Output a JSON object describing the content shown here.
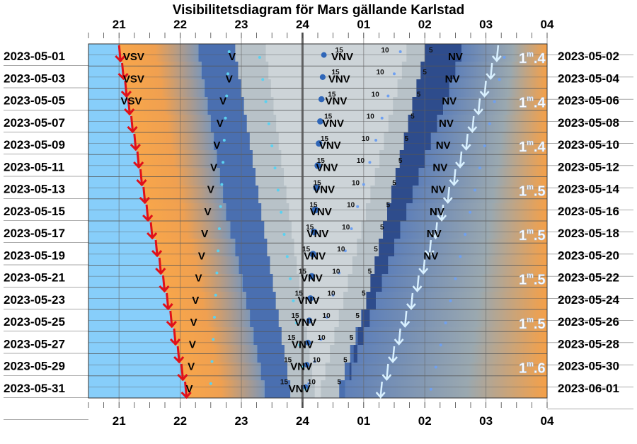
{
  "chart_data": {
    "type": "other",
    "title": "Visibilitetsdiagram för Mars gällande Karlstad",
    "x_tick_labels": [
      "21",
      "22",
      "23",
      "24",
      "01",
      "02",
      "03",
      "04"
    ],
    "x_hours": [
      21,
      22,
      23,
      24,
      25,
      26,
      27,
      28
    ],
    "left_dates": [
      "2023-05-01",
      "2023-05-03",
      "2023-05-05",
      "2023-05-07",
      "2023-05-09",
      "2023-05-11",
      "2023-05-13",
      "2023-05-15",
      "2023-05-17",
      "2023-05-19",
      "2023-05-21",
      "2023-05-23",
      "2023-05-25",
      "2023-05-27",
      "2023-05-29",
      "2023-05-31"
    ],
    "right_dates": [
      "2023-05-02",
      "2023-05-04",
      "2023-05-06",
      "2023-05-08",
      "2023-05-10",
      "2023-05-12",
      "2023-05-14",
      "2023-05-16",
      "2023-05-18",
      "2023-05-20",
      "2023-05-22",
      "2023-05-24",
      "2023-05-26",
      "2023-05-28",
      "2023-05-30",
      "2023-06-01"
    ],
    "sunset_hours": [
      21.0,
      21.05,
      21.1,
      21.15,
      21.2,
      21.25,
      21.3,
      21.35,
      21.4,
      21.45,
      21.52,
      21.6,
      21.66,
      21.72,
      21.78,
      21.84,
      21.9,
      21.96,
      22.02,
      22.08
    ],
    "sunrise_hours": [
      27.2,
      27.1,
      27.0,
      26.9,
      26.8,
      26.7,
      26.6,
      26.5,
      26.4,
      26.3,
      26.2,
      26.1,
      26.0,
      25.9,
      25.8,
      25.7,
      25.6,
      25.5,
      25.4,
      25.3
    ],
    "direction_labels": [
      {
        "row": 0,
        "hour": 21.24,
        "text": "VSV"
      },
      {
        "row": 1,
        "hour": 21.24,
        "text": "VSV"
      },
      {
        "row": 2,
        "hour": 21.2,
        "text": "VSV"
      },
      {
        "row": 0,
        "hour": 22.85,
        "text": "V"
      },
      {
        "row": 1,
        "hour": 22.8,
        "text": "V"
      },
      {
        "row": 2,
        "hour": 22.7,
        "text": "V"
      },
      {
        "row": 3,
        "hour": 22.65,
        "text": "V"
      },
      {
        "row": 4,
        "hour": 22.6,
        "text": "V"
      },
      {
        "row": 5,
        "hour": 22.55,
        "text": "V"
      },
      {
        "row": 6,
        "hour": 22.5,
        "text": "V"
      },
      {
        "row": 7,
        "hour": 22.45,
        "text": "V"
      },
      {
        "row": 8,
        "hour": 22.4,
        "text": "V"
      },
      {
        "row": 9,
        "hour": 22.35,
        "text": "V"
      },
      {
        "row": 10,
        "hour": 22.3,
        "text": "V"
      },
      {
        "row": 11,
        "hour": 22.25,
        "text": "V"
      },
      {
        "row": 12,
        "hour": 22.22,
        "text": "V"
      },
      {
        "row": 13,
        "hour": 22.2,
        "text": "V"
      },
      {
        "row": 14,
        "hour": 22.18,
        "text": "V"
      },
      {
        "row": 15,
        "hour": 22.15,
        "text": "V"
      },
      {
        "row": 0,
        "hour": 24.65,
        "text": "VNV"
      },
      {
        "row": 1,
        "hour": 24.6,
        "text": "VNV"
      },
      {
        "row": 2,
        "hour": 24.55,
        "text": "VNV"
      },
      {
        "row": 3,
        "hour": 24.5,
        "text": "VNV"
      },
      {
        "row": 4,
        "hour": 24.45,
        "text": "VNV"
      },
      {
        "row": 5,
        "hour": 24.4,
        "text": "VNV"
      },
      {
        "row": 6,
        "hour": 24.35,
        "text": "VNV"
      },
      {
        "row": 7,
        "hour": 24.3,
        "text": "VNV"
      },
      {
        "row": 8,
        "hour": 24.25,
        "text": "VNV"
      },
      {
        "row": 9,
        "hour": 24.2,
        "text": "VNV"
      },
      {
        "row": 10,
        "hour": 24.15,
        "text": "VNV"
      },
      {
        "row": 11,
        "hour": 24.1,
        "text": "VNV"
      },
      {
        "row": 12,
        "hour": 24.05,
        "text": "VNV"
      },
      {
        "row": 13,
        "hour": 24.0,
        "text": "VNV"
      },
      {
        "row": 14,
        "hour": 23.98,
        "text": "VNV"
      },
      {
        "row": 15,
        "hour": 23.95,
        "text": "VNV"
      },
      {
        "row": 0,
        "hour": 26.5,
        "text": "NV"
      },
      {
        "row": 1,
        "hour": 26.45,
        "text": "NV"
      },
      {
        "row": 2,
        "hour": 26.4,
        "text": "NV"
      },
      {
        "row": 3,
        "hour": 26.35,
        "text": "NV"
      },
      {
        "row": 4,
        "hour": 26.3,
        "text": "NV"
      },
      {
        "row": 5,
        "hour": 26.25,
        "text": "NV"
      },
      {
        "row": 6,
        "hour": 26.22,
        "text": "NV"
      },
      {
        "row": 7,
        "hour": 26.2,
        "text": "NV"
      },
      {
        "row": 8,
        "hour": 26.15,
        "text": "NV"
      },
      {
        "row": 9,
        "hour": 26.1,
        "text": "NV"
      }
    ],
    "altitude_labels_text": [
      "15",
      "10",
      "5"
    ],
    "magnitude_labels": [
      {
        "row": 0,
        "text": "1",
        "sup": "m",
        "rest": ".4"
      },
      {
        "row": 2,
        "text": "1",
        "sup": "m",
        "rest": ".4"
      },
      {
        "row": 4,
        "text": "1",
        "sup": "m",
        "rest": ".4"
      },
      {
        "row": 6,
        "text": "1",
        "sup": "m",
        "rest": ".5"
      },
      {
        "row": 8,
        "text": "1",
        "sup": "m",
        "rest": ".5"
      },
      {
        "row": 10,
        "text": "1",
        "sup": "m",
        "rest": ".5"
      },
      {
        "row": 12,
        "text": "1",
        "sup": "m",
        "rest": ".5"
      },
      {
        "row": 14,
        "text": "1",
        "sup": "m",
        "rest": ".6"
      }
    ],
    "colors": {
      "day": "#87cefa",
      "twilight_orange": "#f59a3c",
      "night_blue": "#4a6fb0",
      "deep_night": "#2e4c8c",
      "sky_grey": "#b8c2c8",
      "planet_band": "#cdd4d8",
      "sunset_arrow": "#e0101a",
      "sunrise_arrow": "#d8f0ff",
      "grid": "#333333"
    }
  }
}
